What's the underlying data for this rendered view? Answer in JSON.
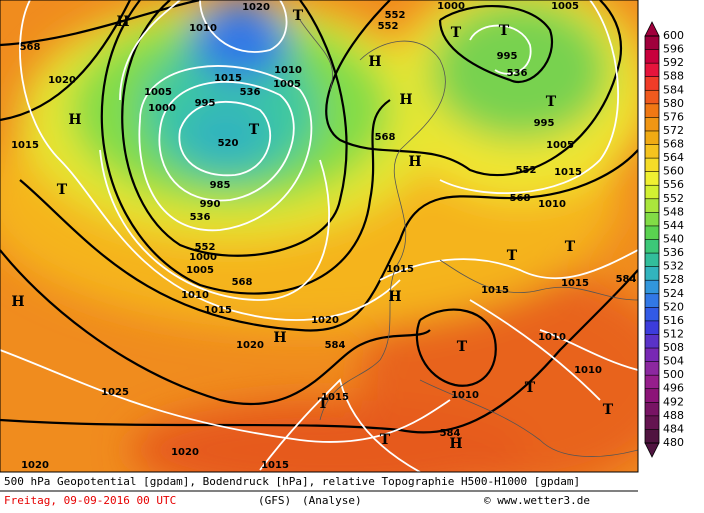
{
  "map_labels": [
    "568",
    "1020",
    "H",
    "1015",
    "T",
    "H",
    "1025",
    "1020",
    "1020",
    "1015",
    "1015",
    "T",
    "T",
    "584",
    "H",
    "T",
    "T",
    "1010",
    "T",
    "1010",
    "1010",
    "1015",
    "584",
    "T",
    "T",
    "1015",
    "H",
    "1015",
    "584",
    "H",
    "1020",
    "1020",
    "1015",
    "1010",
    "568",
    "552",
    "536",
    "1005",
    "1000",
    "990",
    "985",
    "520",
    "T",
    "536",
    "995",
    "1000",
    "1005",
    "1015",
    "1010",
    "1020",
    "T",
    "H",
    "1010",
    "1005",
    "H",
    "552",
    "552",
    "H",
    "568",
    "H",
    "T",
    "T",
    "995",
    "536",
    "T",
    "995",
    "1005",
    "552",
    "1015",
    "568",
    "1010",
    "1005",
    "1000"
  ],
  "colorbar": {
    "ticks": [
      600,
      596,
      592,
      588,
      584,
      580,
      576,
      572,
      568,
      564,
      560,
      556,
      552,
      548,
      544,
      540,
      536,
      532,
      528,
      524,
      520,
      516,
      512,
      508,
      504,
      500,
      496,
      492,
      488,
      484,
      480
    ],
    "colors": [
      "#a0003c",
      "#c8003c",
      "#e6143c",
      "#f03c28",
      "#f05a1e",
      "#f07814",
      "#f09614",
      "#f0aa14",
      "#f5c31e",
      "#f5dc28",
      "#f0f032",
      "#d2f032",
      "#aae63c",
      "#82dc46",
      "#5ad250",
      "#3cc878",
      "#32be9b",
      "#32b4be",
      "#3296dc",
      "#3278e6",
      "#325ae6",
      "#3c3cdc",
      "#5a32c8",
      "#7828b4",
      "#8c28a0",
      "#961e8c",
      "#8c1478",
      "#781464",
      "#641450",
      "#501440"
    ]
  },
  "footer": {
    "description": "500 hPa Geopotential [gpdam], Bodendruck [hPa], relative Topographie H500-H1000 [gpdam]",
    "date": "Freitag, 09-09-2016  00 UTC",
    "model": "(GFS)",
    "run": "(Analyse)",
    "source": "© www.wetter3.de"
  }
}
